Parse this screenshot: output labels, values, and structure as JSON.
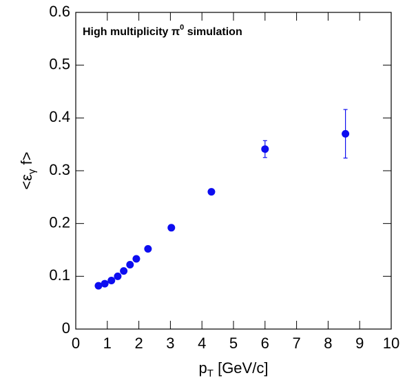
{
  "chart_data": {
    "type": "scatter",
    "title": {
      "text": "High multiplicity π",
      "sup": "0",
      "rest": " simulation"
    },
    "x_label": {
      "text": "p",
      "sub": "T",
      "rest": " [GeV/c]"
    },
    "y_label": {
      "text": "<ε",
      "sub": "γ",
      "rest": " f>"
    },
    "series": [
      {
        "name": "High multiplicity",
        "color": "#0d0df0",
        "x": [
          0.72,
          0.92,
          1.13,
          1.33,
          1.52,
          1.72,
          1.92,
          2.29,
          3.03,
          4.3,
          6.0,
          8.55
        ],
        "values": [
          0.082,
          0.086,
          0.092,
          0.1,
          0.11,
          0.122,
          0.133,
          0.152,
          0.192,
          0.26,
          0.341,
          0.37
        ],
        "errors": [
          null,
          null,
          null,
          null,
          null,
          null,
          null,
          null,
          null,
          null,
          0.016,
          0.046
        ]
      }
    ],
    "xlim": [
      0,
      10
    ],
    "xticks": [
      0,
      1,
      2,
      3,
      4,
      5,
      6,
      7,
      8,
      9,
      10
    ],
    "ylim": [
      0,
      0.6
    ],
    "yticks": [
      0,
      0.1,
      0.2,
      0.3,
      0.4,
      0.5,
      0.6
    ]
  }
}
